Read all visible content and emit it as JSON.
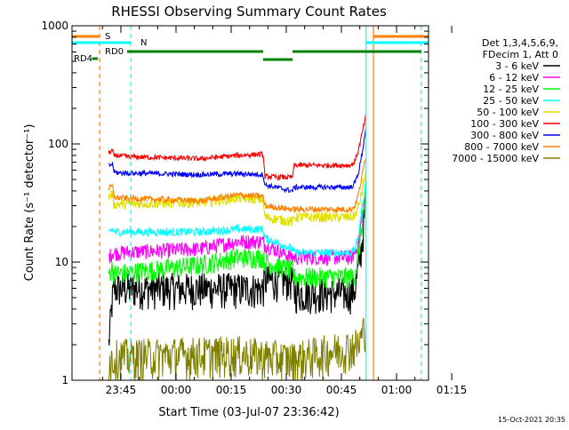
{
  "title": "RHESSI Observing Summary Count Rates",
  "xlabel": "Start Time (03-Jul-07 23:36:42)",
  "ylabel": "Count Rate (s⁻¹ detector⁻¹)",
  "timestamp": "15-Oct-2021 20:35",
  "legend": {
    "header": [
      "Det 1,3,4,5,6,9,",
      "FDecim 1, Att 0"
    ],
    "entries": [
      {
        "label": "3 - 6 keV",
        "color": "#000000"
      },
      {
        "label": "6 - 12 keV",
        "color": "#ff00ff"
      },
      {
        "label": "12 - 25 keV",
        "color": "#00ff00"
      },
      {
        "label": "25 - 50 keV",
        "color": "#00ffff"
      },
      {
        "label": "50 - 100 keV",
        "color": "#e0e000"
      },
      {
        "label": "100 - 300 keV",
        "color": "#ff0000"
      },
      {
        "label": "300 - 800 keV",
        "color": "#0000ff"
      },
      {
        "label": "800 - 7000 keV",
        "color": "#ff8000"
      },
      {
        "label": "7000 - 15000 keV",
        "color": "#808000"
      }
    ]
  },
  "flag_bars": [
    {
      "label": "S",
      "color": "#ff8000",
      "segments": [
        [
          -5,
          2.5
        ],
        [
          77,
          92
        ]
      ]
    },
    {
      "label": "N",
      "color": "#00ffff",
      "segments": [
        [
          -5,
          11
        ],
        [
          75,
          92
        ]
      ]
    },
    {
      "label": "RD0",
      "color": "#008000",
      "segments": [
        [
          10,
          47
        ],
        [
          55,
          90
        ]
      ]
    },
    {
      "label": "",
      "color": "#008000",
      "segments": [
        [
          47,
          55
        ]
      ]
    },
    {
      "label": "RD4",
      "color": "#008000",
      "segments": [
        [
          0.5,
          2
        ]
      ]
    }
  ],
  "chart_data": {
    "type": "line",
    "xunit": "minutes after 23:36:42",
    "xlim": [
      -5,
      92
    ],
    "ylim": [
      1,
      1000
    ],
    "ylog": true,
    "xticks": [
      {
        "label": "23:45",
        "value": 8.3
      },
      {
        "label": "00:00",
        "value": 23.3
      },
      {
        "label": "00:15",
        "value": 38.3
      },
      {
        "label": "00:30",
        "value": 53.3
      },
      {
        "label": "00:45",
        "value": 68.3
      },
      {
        "label": "01:00",
        "value": 83.3
      },
      {
        "label": "01:15",
        "value": 98.3
      }
    ],
    "yticks": [
      {
        "label": "1",
        "value": 1
      },
      {
        "label": "10",
        "value": 10
      },
      {
        "label": "100",
        "value": 100
      },
      {
        "label": "1000",
        "value": 1000
      }
    ],
    "vlines": [
      {
        "x": 2.5,
        "color": "#ff8000",
        "style": "dashed"
      },
      {
        "x": 11,
        "color": "#00ffff",
        "style": "dashed"
      },
      {
        "x": 75,
        "color": "#00ffff",
        "style": "solid"
      },
      {
        "x": 77,
        "color": "#ff8000",
        "style": "solid"
      },
      {
        "x": 90,
        "color": "#00ffff",
        "style": "dashed"
      }
    ],
    "series": [
      {
        "name": "3 - 6 keV",
        "color": "#000000",
        "noise": 0.35,
        "x": [
          5,
          6,
          6.5,
          7,
          47,
          47.5,
          55,
          55.5,
          71,
          72,
          73,
          74,
          75
        ],
        "y": [
          2,
          5,
          6,
          6,
          6,
          7,
          7,
          5.5,
          5.5,
          6,
          9,
          15,
          35
        ]
      },
      {
        "name": "6 - 12 keV",
        "color": "#ff00ff",
        "noise": 0.15,
        "x": [
          5,
          6,
          6.5,
          7,
          30,
          40,
          47,
          47.5,
          55,
          55.5,
          71,
          72,
          73,
          74,
          75
        ],
        "y": [
          11,
          12,
          12,
          12,
          13,
          15,
          15,
          14,
          11,
          11,
          11,
          12,
          15,
          25,
          40
        ]
      },
      {
        "name": "12 - 25 keV",
        "color": "#00ff00",
        "noise": 0.2,
        "x": [
          5,
          6,
          6.5,
          7,
          30,
          40,
          47,
          47.5,
          55,
          55.5,
          71,
          72,
          73,
          74,
          75
        ],
        "y": [
          8,
          9,
          8,
          8,
          9.5,
          11,
          11,
          10,
          8.5,
          7.5,
          7.5,
          8,
          12,
          22,
          40
        ]
      },
      {
        "name": "25 - 50 keV",
        "color": "#00ffff",
        "noise": 0.08,
        "x": [
          5,
          6,
          6.5,
          7,
          30,
          40,
          47,
          47.5,
          55,
          55.5,
          71,
          72,
          73,
          74,
          75
        ],
        "y": [
          18,
          19,
          18,
          18,
          18,
          19,
          19,
          16,
          13,
          12,
          12,
          13,
          17,
          30,
          48
        ]
      },
      {
        "name": "50 - 100 keV",
        "color": "#e0e000",
        "noise": 0.1,
        "x": [
          5,
          6,
          6.5,
          7,
          30,
          40,
          47,
          47.5,
          55,
          55.5,
          71,
          72,
          73,
          74,
          75
        ],
        "y": [
          36,
          38,
          30,
          31,
          32,
          35,
          34,
          24,
          22,
          24,
          24,
          25,
          30,
          40,
          60
        ]
      },
      {
        "name": "100 - 300 keV",
        "color": "#ff0000",
        "noise": 0.05,
        "x": [
          5,
          6,
          6.5,
          7,
          10,
          30,
          40,
          47,
          47.5,
          55,
          55.5,
          71,
          72,
          73,
          74,
          75
        ],
        "y": [
          84,
          88,
          78,
          80,
          78,
          75,
          80,
          82,
          53,
          52,
          66,
          66,
          72,
          90,
          125,
          175
        ]
      },
      {
        "name": "300 - 800 keV",
        "color": "#0000ff",
        "noise": 0.05,
        "x": [
          5,
          6,
          6.5,
          7,
          30,
          40,
          47,
          47.5,
          55,
          55.5,
          71,
          72,
          73,
          74,
          75
        ],
        "y": [
          65,
          68,
          58,
          57,
          55,
          56,
          55,
          45,
          40,
          43,
          43,
          47,
          58,
          85,
          140
        ]
      },
      {
        "name": "800 - 7000 keV",
        "color": "#ff8000",
        "noise": 0.06,
        "x": [
          5,
          6,
          6.5,
          7,
          30,
          40,
          47,
          47.5,
          55,
          55.5,
          71,
          72,
          73,
          74,
          75
        ],
        "y": [
          42,
          44,
          36,
          35,
          33,
          37,
          36,
          30,
          28,
          28,
          28,
          30,
          38,
          55,
          80
        ]
      },
      {
        "name": "7000 - 15000 keV",
        "color": "#808000",
        "noise": 0.4,
        "x": [
          5,
          8,
          40,
          47,
          55,
          73,
          75
        ],
        "y": [
          1.5,
          1.6,
          1.7,
          1.6,
          1.5,
          2,
          3
        ]
      }
    ]
  }
}
